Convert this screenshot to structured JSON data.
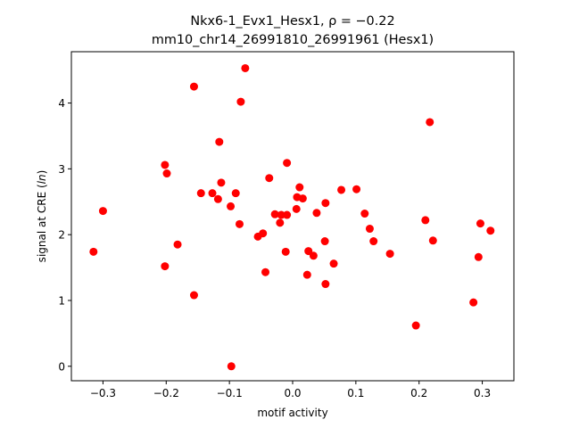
{
  "chart_data": {
    "type": "scatter",
    "title_line1": "Nkx6-1_Evx1_Hesx1, ρ = −0.22",
    "title_line2": "mm10_chr14_26991810_26991961 (Hesx1)",
    "xlabel": "motif activity",
    "ylabel": "signal at CRE (ln)",
    "xlim": [
      -0.35,
      0.35
    ],
    "ylim": [
      -0.22,
      4.78
    ],
    "xticks": [
      -0.3,
      -0.2,
      -0.1,
      0.0,
      0.1,
      0.2,
      0.3
    ],
    "xtick_labels": [
      "−0.3",
      "−0.2",
      "−0.1",
      "0.0",
      "0.1",
      "0.2",
      "0.3"
    ],
    "yticks": [
      0,
      1,
      2,
      3,
      4
    ],
    "ytick_labels": [
      "0",
      "1",
      "2",
      "3",
      "4"
    ],
    "grid": false,
    "marker_color": "#ff0000",
    "points": [
      {
        "x": -0.315,
        "y": 1.74
      },
      {
        "x": -0.3,
        "y": 2.36
      },
      {
        "x": -0.202,
        "y": 3.06
      },
      {
        "x": -0.199,
        "y": 2.93
      },
      {
        "x": -0.202,
        "y": 1.52
      },
      {
        "x": -0.182,
        "y": 1.85
      },
      {
        "x": -0.156,
        "y": 4.25
      },
      {
        "x": -0.156,
        "y": 1.08
      },
      {
        "x": -0.145,
        "y": 2.63
      },
      {
        "x": -0.127,
        "y": 2.63
      },
      {
        "x": -0.118,
        "y": 2.54
      },
      {
        "x": -0.116,
        "y": 3.41
      },
      {
        "x": -0.113,
        "y": 2.79
      },
      {
        "x": -0.098,
        "y": 2.43
      },
      {
        "x": -0.09,
        "y": 2.63
      },
      {
        "x": -0.084,
        "y": 2.16
      },
      {
        "x": -0.082,
        "y": 4.02
      },
      {
        "x": -0.075,
        "y": 4.53
      },
      {
        "x": -0.097,
        "y": 0.0
      },
      {
        "x": -0.055,
        "y": 1.97
      },
      {
        "x": -0.047,
        "y": 2.02
      },
      {
        "x": -0.043,
        "y": 1.43
      },
      {
        "x": -0.037,
        "y": 2.86
      },
      {
        "x": -0.028,
        "y": 2.31
      },
      {
        "x": -0.02,
        "y": 2.18
      },
      {
        "x": -0.018,
        "y": 2.3
      },
      {
        "x": -0.011,
        "y": 1.74
      },
      {
        "x": -0.009,
        "y": 3.09
      },
      {
        "x": -0.009,
        "y": 2.3
      },
      {
        "x": 0.006,
        "y": 2.39
      },
      {
        "x": 0.007,
        "y": 2.57
      },
      {
        "x": 0.011,
        "y": 2.72
      },
      {
        "x": 0.016,
        "y": 2.55
      },
      {
        "x": 0.023,
        "y": 1.39
      },
      {
        "x": 0.025,
        "y": 1.75
      },
      {
        "x": 0.033,
        "y": 1.68
      },
      {
        "x": 0.038,
        "y": 2.33
      },
      {
        "x": 0.051,
        "y": 1.9
      },
      {
        "x": 0.052,
        "y": 2.48
      },
      {
        "x": 0.052,
        "y": 1.25
      },
      {
        "x": 0.065,
        "y": 1.56
      },
      {
        "x": 0.077,
        "y": 2.68
      },
      {
        "x": 0.101,
        "y": 2.69
      },
      {
        "x": 0.114,
        "y": 2.32
      },
      {
        "x": 0.122,
        "y": 2.09
      },
      {
        "x": 0.128,
        "y": 1.9
      },
      {
        "x": 0.154,
        "y": 1.71
      },
      {
        "x": 0.195,
        "y": 0.62
      },
      {
        "x": 0.21,
        "y": 2.22
      },
      {
        "x": 0.217,
        "y": 3.71
      },
      {
        "x": 0.222,
        "y": 1.91
      },
      {
        "x": 0.286,
        "y": 0.97
      },
      {
        "x": 0.294,
        "y": 1.66
      },
      {
        "x": 0.297,
        "y": 2.17
      },
      {
        "x": 0.313,
        "y": 2.06
      }
    ]
  }
}
